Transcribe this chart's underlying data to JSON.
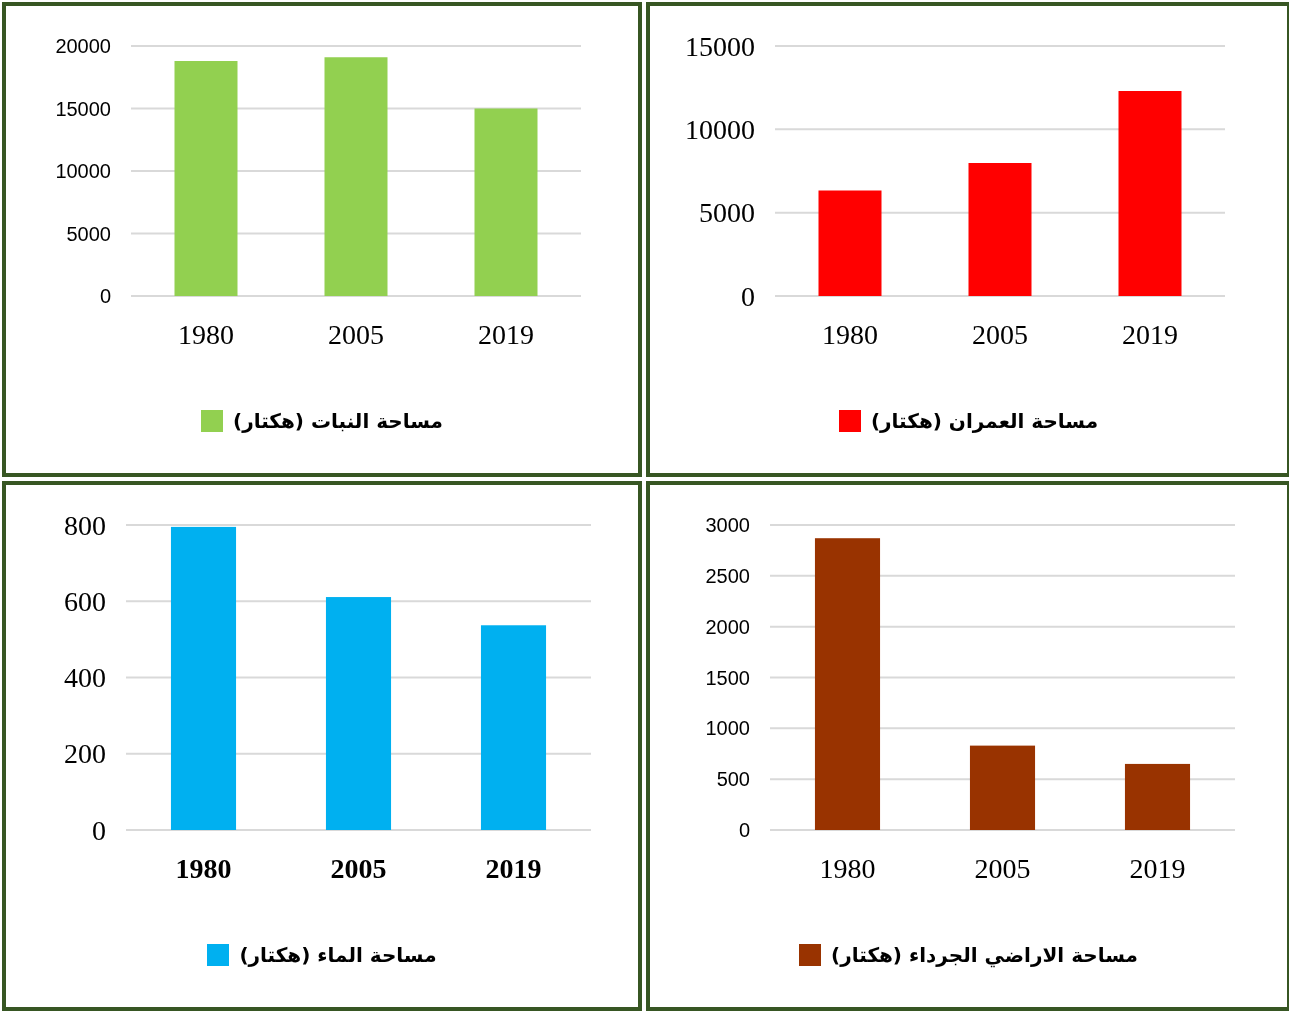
{
  "chart_data": [
    {
      "type": "bar",
      "categories": [
        "1980",
        "2005",
        "2019"
      ],
      "series": [
        {
          "name": "مساحة النبات (هكتار)",
          "color": "#92d050",
          "values": [
            18800,
            19100,
            15000
          ]
        }
      ],
      "ylim": [
        0,
        20000
      ],
      "yticks": [
        0,
        5000,
        10000,
        15000,
        20000
      ],
      "grid": "y",
      "legend": "bottom"
    },
    {
      "type": "bar",
      "categories": [
        "1980",
        "2005",
        "2019"
      ],
      "series": [
        {
          "name": "مساحة العمران (هكتار)",
          "color": "#ff0000",
          "values": [
            6330,
            7980,
            12300
          ]
        }
      ],
      "ylim": [
        0,
        15000
      ],
      "yticks": [
        0,
        5000,
        10000,
        15000
      ],
      "grid": "y",
      "legend": "bottom"
    },
    {
      "type": "bar",
      "categories": [
        "1980",
        "2005",
        "2019"
      ],
      "series": [
        {
          "name": "مساحة الماء (هكتار)",
          "color": "#00b0f0",
          "values": [
            795,
            611,
            537
          ]
        }
      ],
      "ylim": [
        0,
        800
      ],
      "yticks": [
        0,
        200,
        400,
        600,
        800
      ],
      "grid": "y",
      "legend": "bottom"
    },
    {
      "type": "bar",
      "categories": [
        "1980",
        "2005",
        "2019"
      ],
      "series": [
        {
          "name": "مساحة الاراضي الجرداء (هكتار)",
          "color": "#993300",
          "values": [
            2870,
            830,
            650
          ]
        }
      ],
      "ylim": [
        0,
        3000
      ],
      "yticks": [
        0,
        500,
        1000,
        1500,
        2000,
        2500,
        3000
      ],
      "grid": "y",
      "legend": "bottom"
    }
  ]
}
